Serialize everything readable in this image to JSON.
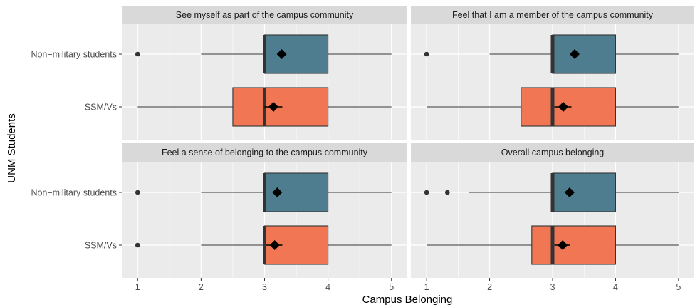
{
  "chart_data": {
    "type": "boxplot",
    "xlabel": "Campus Belonging",
    "ylabel": "UNM Students",
    "xlim": [
      0.75,
      5.25
    ],
    "x_ticks": [
      1,
      2,
      3,
      4,
      5
    ],
    "groups": [
      "Non−military students",
      "SSM/Vs"
    ],
    "colors": {
      "Non−military students": "#4e7d90",
      "SSM/Vs": "#f07654",
      "panel_bg": "#ebebeb",
      "strip_bg": "#d9d9d9",
      "grid": "#ffffff"
    },
    "panels": [
      {
        "title": "See myself as part of the campus community",
        "boxes": [
          {
            "group": "Non−military students",
            "whisker_low": 2,
            "q1": 3,
            "median": 3,
            "q3": 4,
            "whisker_high": 5,
            "mean": 3.27,
            "mean_ci": [
              3.22,
              3.32
            ],
            "outliers": [
              1
            ]
          },
          {
            "group": "SSM/Vs",
            "whisker_low": 1,
            "q1": 2.5,
            "median": 3,
            "q3": 4,
            "whisker_high": 5,
            "mean": 3.14,
            "mean_ci": [
              3.0,
              3.28
            ],
            "outliers": []
          }
        ]
      },
      {
        "title": "Feel that I am a member of the campus community",
        "boxes": [
          {
            "group": "Non−military students",
            "whisker_low": 2,
            "q1": 3,
            "median": 3,
            "q3": 4,
            "whisker_high": 5,
            "mean": 3.35,
            "mean_ci": [
              3.3,
              3.4
            ],
            "outliers": [
              1
            ]
          },
          {
            "group": "SSM/Vs",
            "whisker_low": 1,
            "q1": 2.5,
            "median": 3,
            "q3": 4,
            "whisker_high": 5,
            "mean": 3.17,
            "mean_ci": [
              3.03,
              3.3
            ],
            "outliers": []
          }
        ]
      },
      {
        "title": "Feel a sense of belonging to the campus community",
        "boxes": [
          {
            "group": "Non−military students",
            "whisker_low": 2,
            "q1": 3,
            "median": 3,
            "q3": 4,
            "whisker_high": 5,
            "mean": 3.2,
            "mean_ci": [
              3.15,
              3.25
            ],
            "outliers": [
              1
            ]
          },
          {
            "group": "SSM/Vs",
            "whisker_low": 2,
            "q1": 3,
            "median": 3,
            "q3": 4,
            "whisker_high": 5,
            "mean": 3.16,
            "mean_ci": [
              3.02,
              3.28
            ],
            "outliers": [
              1
            ]
          }
        ]
      },
      {
        "title": "Overall campus belonging",
        "boxes": [
          {
            "group": "Non−military students",
            "whisker_low": 1.67,
            "q1": 3,
            "median": 3,
            "q3": 4,
            "whisker_high": 5,
            "mean": 3.27,
            "mean_ci": [
              3.22,
              3.32
            ],
            "outliers": [
              1,
              1.33
            ]
          },
          {
            "group": "SSM/Vs",
            "whisker_low": 1,
            "q1": 2.67,
            "median": 3,
            "q3": 4,
            "whisker_high": 5,
            "mean": 3.16,
            "mean_ci": [
              3.03,
              3.28
            ],
            "outliers": []
          }
        ]
      }
    ]
  }
}
